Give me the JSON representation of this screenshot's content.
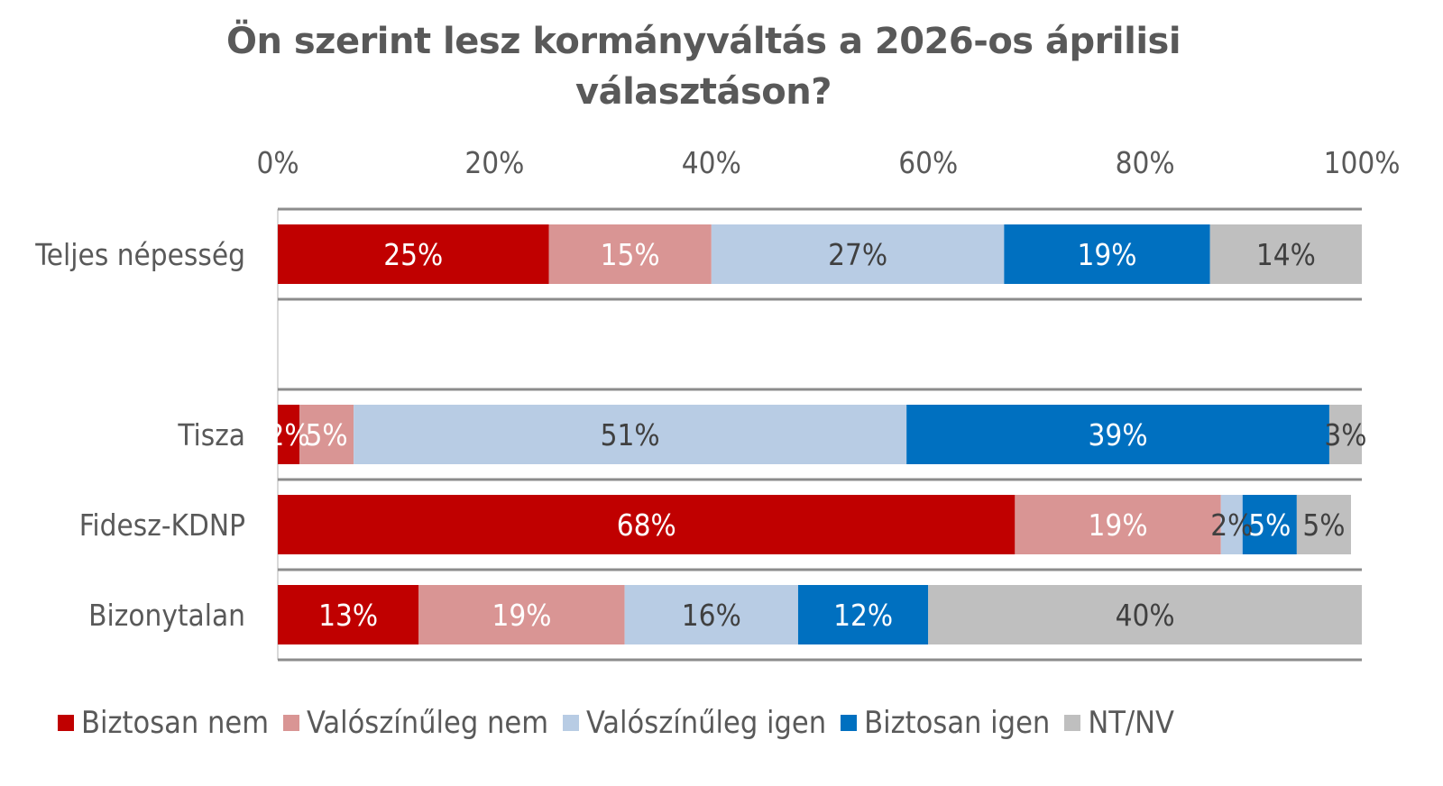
{
  "chart_data": {
    "type": "bar",
    "orientation": "horizontal",
    "stacked": true,
    "title": "Ön szerint lesz kormányváltás a 2026-os áprilisi választáson?",
    "title_lines": [
      "Ön szerint lesz kormányváltás a 2026-os áprilisi",
      "választáson?"
    ],
    "xlabel": "",
    "ylabel": "",
    "xlim": [
      0,
      100
    ],
    "x_ticks": [
      "0%",
      "20%",
      "40%",
      "60%",
      "80%",
      "100%"
    ],
    "x_tick_values": [
      0,
      20,
      40,
      60,
      80,
      100
    ],
    "x_axis_position": "top",
    "grid": false,
    "legend_position": "bottom",
    "categories": [
      "Teljes népesség",
      "",
      "Tisza",
      "Fidesz-KDNP",
      "Bizonytalan"
    ],
    "series": [
      {
        "name": "Biztosan nem",
        "color": "#C00000",
        "label_color": "#FFFFFF",
        "values": [
          25,
          null,
          2,
          68,
          13
        ]
      },
      {
        "name": "Valószínűleg nem",
        "color": "#D99594",
        "label_color": "#FFFFFF",
        "values": [
          15,
          null,
          5,
          19,
          19
        ]
      },
      {
        "name": "Valószínűleg igen",
        "color": "#B8CCE4",
        "label_color": "#404040",
        "values": [
          27,
          null,
          51,
          2,
          16
        ]
      },
      {
        "name": "Biztosan igen",
        "color": "#0070C0",
        "label_color": "#FFFFFF",
        "values": [
          19,
          null,
          39,
          5,
          12
        ]
      },
      {
        "name": "NT/NV",
        "color": "#BFBFBF",
        "label_color": "#404040",
        "values": [
          14,
          null,
          3,
          5,
          40
        ]
      }
    ],
    "value_format": "{v}%"
  }
}
